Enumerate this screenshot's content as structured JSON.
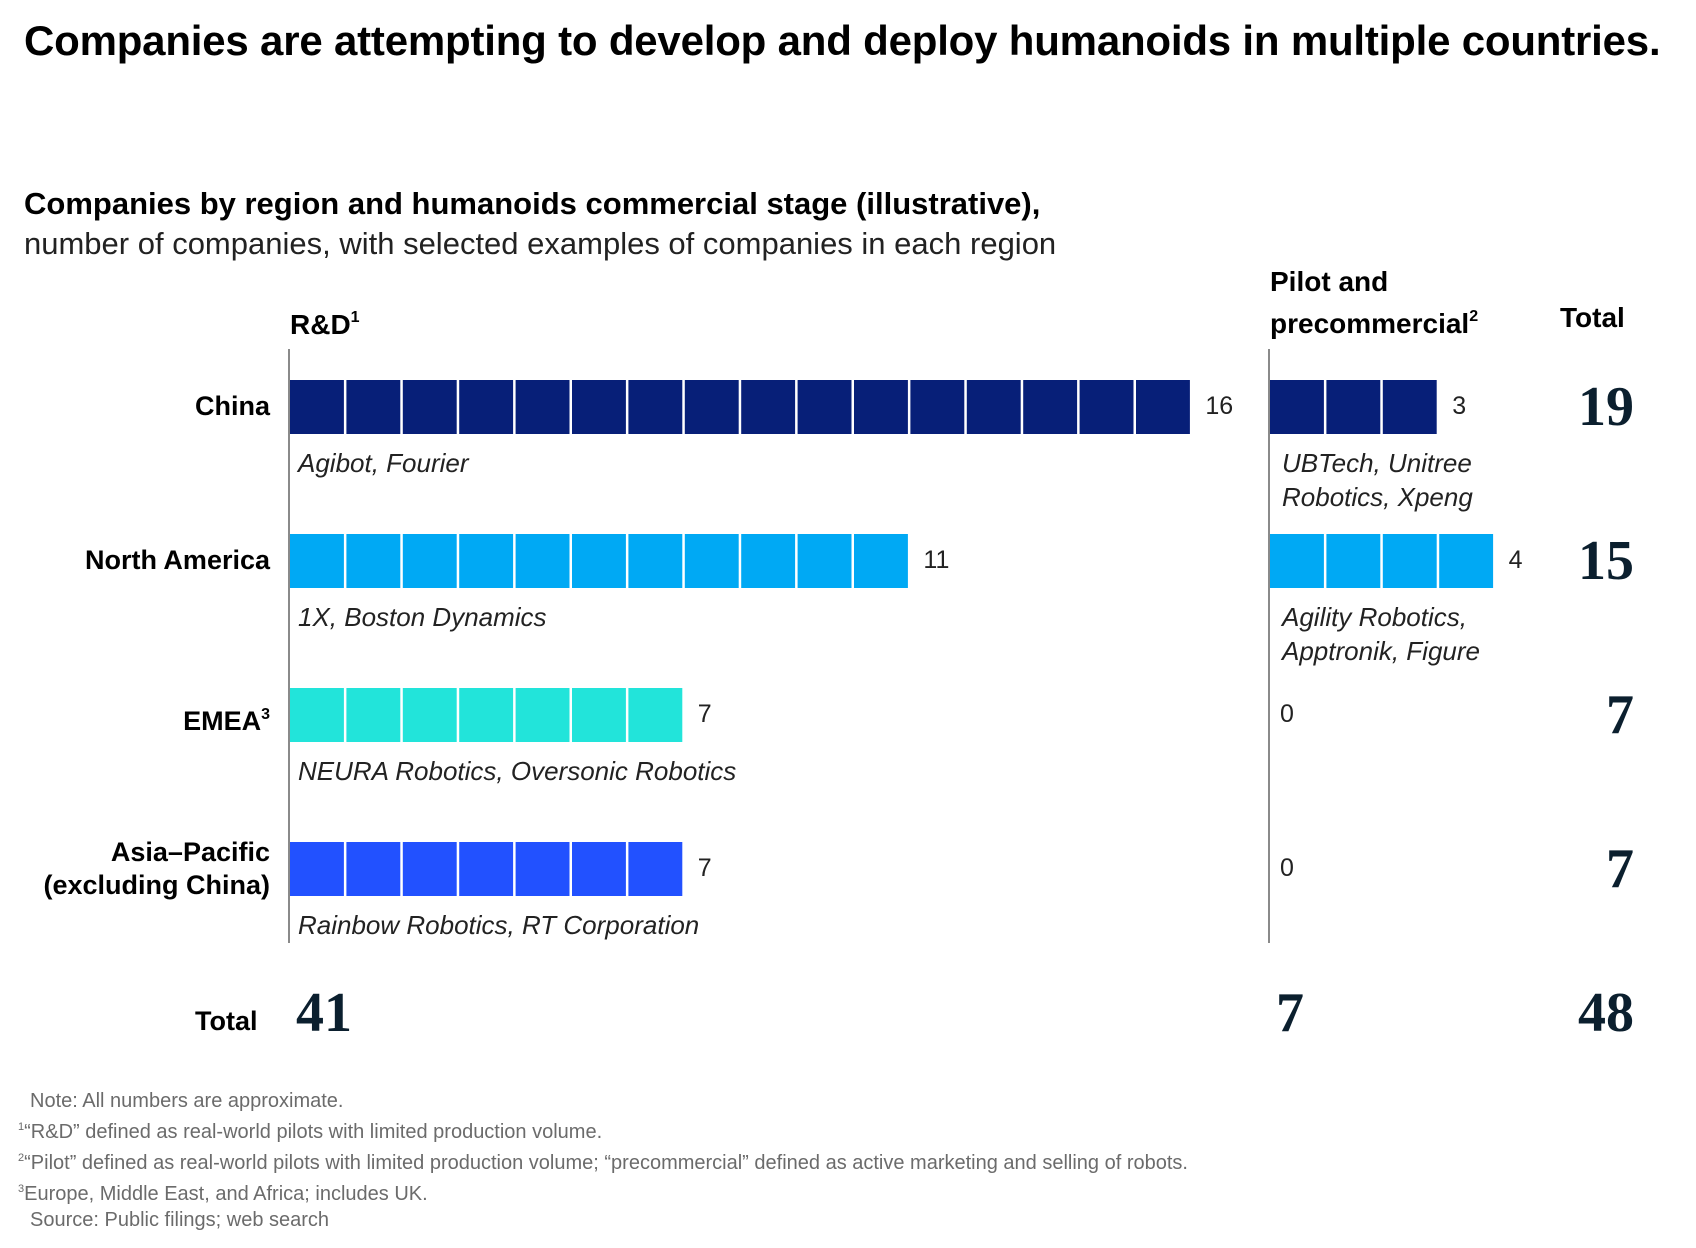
{
  "title": "Companies are attempting to develop and deploy humanoids in multiple countries.",
  "subtitle_bold": "Companies by region and humanoids commercial stage (illustrative),",
  "subtitle": "number of companies, with selected examples of companies in each region",
  "columns": {
    "rd": {
      "label": "R&D",
      "footnote": "1"
    },
    "pilot": {
      "label_line1": "Pilot and",
      "label_line2": "precommercial",
      "footnote": "2"
    },
    "total": {
      "label": "Total"
    }
  },
  "colors": {
    "china": "#071F78",
    "north_america": "#00A9F4",
    "emea": "#22E4DA",
    "asia_pacific": "#2251FF",
    "total_text": "#0B1F2E"
  },
  "chart_data": {
    "type": "bar",
    "title": "Companies by region and humanoids commercial stage (illustrative)",
    "unit": "number of companies",
    "categories": [
      "China",
      "North America",
      "EMEA",
      "Asia–Pacific (excluding China)"
    ],
    "series": [
      {
        "name": "R&D",
        "values": [
          16,
          11,
          7,
          7
        ]
      },
      {
        "name": "Pilot and precommercial",
        "values": [
          3,
          4,
          0,
          0
        ]
      }
    ],
    "row_totals": [
      19,
      15,
      7,
      7
    ],
    "column_totals": {
      "rd": 41,
      "pilot": 7,
      "grand": 48
    },
    "xlabel": "",
    "ylabel": "",
    "grid": false,
    "legend": "column headers"
  },
  "rows": [
    {
      "label": "China",
      "label_line2": "",
      "footnote": "",
      "rd": 16,
      "pilot": 3,
      "total": "19",
      "rd_examples": "Agibot, Fourier",
      "pilot_examples": [
        "UBTech, Unitree",
        "Robotics, Xpeng"
      ],
      "color_key": "china"
    },
    {
      "label": "North America",
      "label_line2": "",
      "footnote": "",
      "rd": 11,
      "pilot": 4,
      "total": "15",
      "rd_examples": "1X, Boston Dynamics",
      "pilot_examples": [
        "Agility Robotics,",
        "Apptronik, Figure"
      ],
      "color_key": "north_america"
    },
    {
      "label": "EMEA",
      "label_line2": "",
      "footnote": "3",
      "rd": 7,
      "pilot": 0,
      "total": "7",
      "rd_examples": "NEURA Robotics, Oversonic Robotics",
      "pilot_examples": [],
      "color_key": "emea"
    },
    {
      "label": "Asia–Pacific",
      "label_line2": "(excluding China)",
      "footnote": "",
      "rd": 7,
      "pilot": 0,
      "total": "7",
      "rd_examples": "Rainbow Robotics, RT Corporation",
      "pilot_examples": [],
      "color_key": "asia_pacific"
    }
  ],
  "totals_row": {
    "label": "Total",
    "rd": "41",
    "pilot": "7",
    "grand": "48"
  },
  "footnotes": {
    "note": "Note: All numbers are approximate.",
    "fn1_mark": "1",
    "fn1": "“R&D” defined as real-world pilots with limited production volume.",
    "fn2_mark": "2",
    "fn2": "“Pilot” defined as real-world pilots with limited production volume; “precommercial” defined as active marketing and selling of robots.",
    "fn3_mark": "3",
    "fn3": "Europe, Middle East, and Africa; includes UK.",
    "source": "Source: Public filings; web search"
  }
}
